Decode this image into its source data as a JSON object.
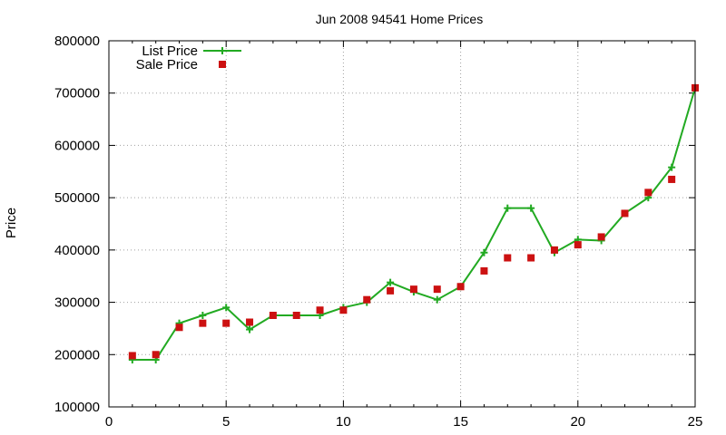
{
  "chart_data": {
    "type": "line",
    "title": "Jun 2008 94541 Home Prices",
    "xlabel": "",
    "ylabel": "Price",
    "xlim": [
      0,
      25
    ],
    "ylim": [
      100000,
      800000
    ],
    "xticks": [
      "0",
      "5",
      "10",
      "15",
      "20",
      "25"
    ],
    "xtick_values": [
      0,
      5,
      10,
      15,
      20,
      25
    ],
    "yticks": [
      "100000",
      "200000",
      "300000",
      "400000",
      "500000",
      "600000",
      "700000",
      "800000"
    ],
    "ytick_values": [
      100000,
      200000,
      300000,
      400000,
      500000,
      600000,
      700000,
      800000
    ],
    "grid": true,
    "legend_position": "top-left",
    "series": [
      {
        "name": "List Price",
        "kind": "line-with-plus-markers",
        "color": "#22aa22",
        "x": [
          1,
          2,
          3,
          4,
          5,
          6,
          7,
          8,
          9,
          10,
          11,
          12,
          13,
          14,
          15,
          16,
          17,
          18,
          19,
          20,
          21,
          22,
          23,
          24,
          25
        ],
        "values": [
          190000,
          190000,
          260000,
          275000,
          290000,
          248000,
          275000,
          275000,
          275000,
          290000,
          300000,
          338000,
          320000,
          305000,
          330000,
          395000,
          480000,
          480000,
          395000,
          420000,
          418000,
          470000,
          500000,
          558000,
          710000
        ]
      },
      {
        "name": "Sale Price",
        "kind": "square-markers",
        "color": "#cc1111",
        "x": [
          1,
          2,
          3,
          4,
          5,
          6,
          7,
          8,
          9,
          10,
          11,
          12,
          13,
          14,
          15,
          16,
          17,
          18,
          19,
          20,
          21,
          22,
          23,
          24,
          25
        ],
        "values": [
          198000,
          200000,
          252000,
          260000,
          260000,
          262000,
          275000,
          275000,
          285000,
          285000,
          305000,
          322000,
          325000,
          325000,
          330000,
          360000,
          385000,
          385000,
          400000,
          410000,
          425000,
          470000,
          510000,
          535000,
          710000
        ]
      }
    ]
  }
}
